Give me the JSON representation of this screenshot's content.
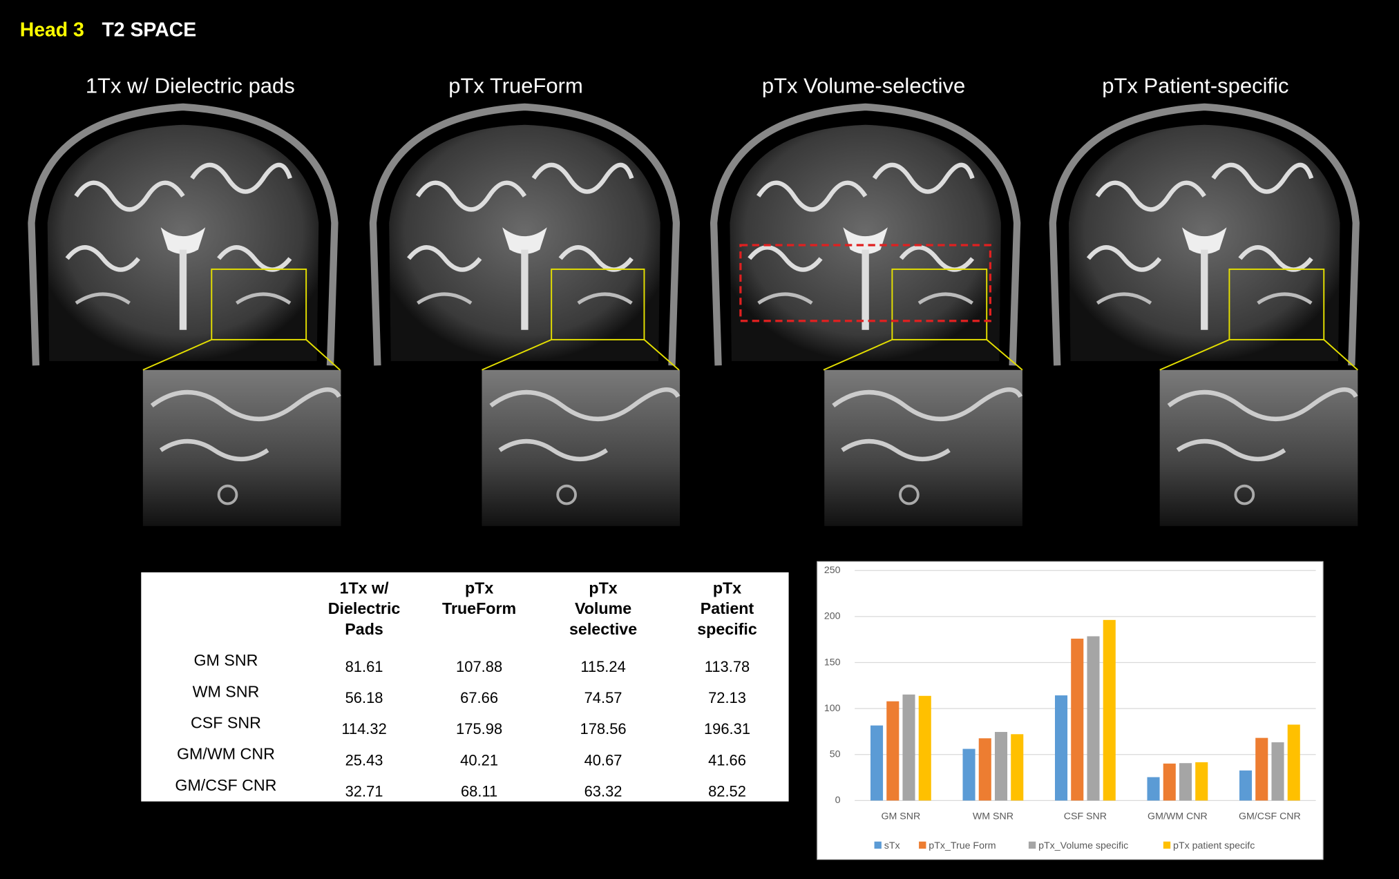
{
  "header": {
    "title_prefix": "Head 3",
    "title_rest": "T2 SPACE"
  },
  "panels": [
    "1Tx w/ Dielectric pads",
    "pTx TrueForm",
    "pTx Volume-selective",
    "pTx Patient-specific"
  ],
  "table": {
    "columns": [
      [
        "1Tx w/",
        "Dielectric",
        "Pads"
      ],
      [
        "pTx",
        "TrueForm"
      ],
      [
        "pTx",
        "Volume",
        "selective"
      ],
      [
        "pTx",
        "Patient",
        "specific"
      ]
    ],
    "rows": [
      [
        "GM SNR",
        "81.61",
        "107.88",
        "115.24",
        "113.78"
      ],
      [
        "WM SNR",
        "56.18",
        "67.66",
        "74.57",
        "72.13"
      ],
      [
        "CSF SNR",
        "114.32",
        "175.98",
        "178.56",
        "196.31"
      ],
      [
        "GM/WM CNR",
        "25.43",
        "40.21",
        "40.67",
        "41.66"
      ],
      [
        "GM/CSF CNR",
        "32.71",
        "68.11",
        "63.32",
        "82.52"
      ]
    ]
  },
  "chart_data": {
    "type": "bar",
    "categories": [
      "GM SNR",
      "WM SNR",
      "CSF SNR",
      "GM/WM CNR",
      "GM/CSF CNR"
    ],
    "series": [
      {
        "name": "sTx",
        "color": "#5b9bd5",
        "values": [
          81.61,
          56.18,
          114.32,
          25.43,
          32.71
        ]
      },
      {
        "name": "pTx_True Form",
        "color": "#ed7d31",
        "values": [
          107.88,
          67.66,
          175.98,
          40.21,
          68.11
        ]
      },
      {
        "name": "pTx_Volume specific",
        "color": "#a5a5a5",
        "values": [
          115.24,
          74.57,
          178.56,
          40.67,
          63.32
        ]
      },
      {
        "name": "pTx patient specifc",
        "color": "#ffc000",
        "values": [
          113.78,
          72.13,
          196.31,
          41.66,
          82.52
        ]
      }
    ],
    "ylim": [
      0,
      250
    ],
    "yticks": [
      0,
      50,
      100,
      150,
      200,
      250
    ],
    "grid": true,
    "legend": "bottom"
  }
}
